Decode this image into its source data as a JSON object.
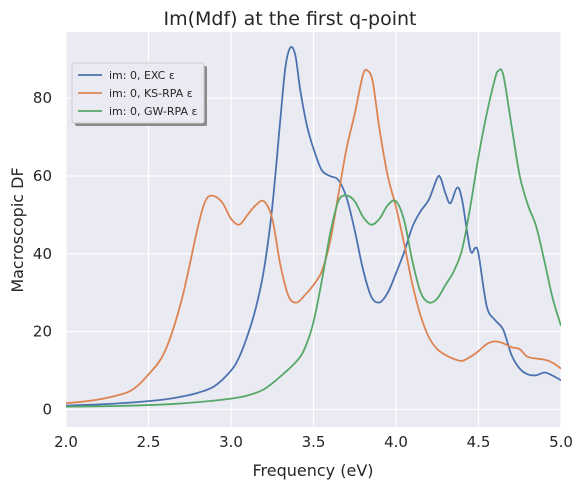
{
  "chart_data": {
    "type": "line",
    "title": "Im(Mdf) at the first q-point",
    "xlabel": "Frequency (eV)",
    "ylabel": "Macroscopic DF",
    "xlim": [
      2.0,
      5.0
    ],
    "ylim": [
      -4.5,
      97
    ],
    "x_ticks": [
      2.0,
      2.5,
      3.0,
      3.5,
      4.0,
      4.5,
      5.0
    ],
    "x_tick_labels": [
      "2.0",
      "2.5",
      "3.0",
      "3.5",
      "4.0",
      "4.5",
      "5.0"
    ],
    "y_ticks": [
      0,
      20,
      40,
      60,
      80
    ],
    "y_tick_labels": [
      "0",
      "20",
      "40",
      "60",
      "80"
    ],
    "grid": true,
    "legend_position": "upper-left",
    "background": "#eaeaf2",
    "series": [
      {
        "name": "im: 0, EXC ε",
        "color": "#4c72b0",
        "points": [
          [
            2.0,
            1.0
          ],
          [
            2.2,
            1.3
          ],
          [
            2.4,
            1.8
          ],
          [
            2.6,
            2.6
          ],
          [
            2.7,
            3.3
          ],
          [
            2.8,
            4.3
          ],
          [
            2.9,
            6.0
          ],
          [
            3.0,
            10.0
          ],
          [
            3.05,
            13.5
          ],
          [
            3.1,
            19.0
          ],
          [
            3.15,
            26.0
          ],
          [
            3.2,
            36.0
          ],
          [
            3.25,
            52.0
          ],
          [
            3.3,
            75.0
          ],
          [
            3.33,
            88.0
          ],
          [
            3.36,
            93.0
          ],
          [
            3.39,
            91.0
          ],
          [
            3.42,
            82.0
          ],
          [
            3.46,
            73.0
          ],
          [
            3.5,
            67.0
          ],
          [
            3.55,
            61.5
          ],
          [
            3.6,
            60.0
          ],
          [
            3.65,
            59.0
          ],
          [
            3.7,
            54.5
          ],
          [
            3.75,
            46.0
          ],
          [
            3.8,
            36.0
          ],
          [
            3.85,
            29.0
          ],
          [
            3.9,
            27.5
          ],
          [
            3.95,
            30.0
          ],
          [
            4.0,
            35.0
          ],
          [
            4.05,
            40.5
          ],
          [
            4.1,
            47.0
          ],
          [
            4.15,
            51.0
          ],
          [
            4.2,
            54.0
          ],
          [
            4.25,
            59.5
          ],
          [
            4.27,
            59.5
          ],
          [
            4.3,
            55.5
          ],
          [
            4.33,
            53.0
          ],
          [
            4.37,
            57.0
          ],
          [
            4.4,
            54.0
          ],
          [
            4.45,
            41.0
          ],
          [
            4.48,
            41.5
          ],
          [
            4.5,
            40.0
          ],
          [
            4.55,
            26.5
          ],
          [
            4.6,
            23.0
          ],
          [
            4.65,
            20.5
          ],
          [
            4.7,
            14.0
          ],
          [
            4.75,
            10.5
          ],
          [
            4.8,
            9.0
          ],
          [
            4.85,
            8.8
          ],
          [
            4.9,
            9.5
          ],
          [
            4.95,
            8.7
          ],
          [
            5.0,
            7.5
          ]
        ]
      },
      {
        "name": "im: 0, KS-RPA ε",
        "color": "#dd8452",
        "points": [
          [
            2.0,
            1.6
          ],
          [
            2.1,
            2.0
          ],
          [
            2.2,
            2.6
          ],
          [
            2.3,
            3.5
          ],
          [
            2.4,
            5.0
          ],
          [
            2.5,
            9.0
          ],
          [
            2.6,
            15.0
          ],
          [
            2.7,
            28.0
          ],
          [
            2.8,
            47.0
          ],
          [
            2.85,
            54.0
          ],
          [
            2.9,
            54.8
          ],
          [
            2.95,
            53.0
          ],
          [
            3.0,
            49.0
          ],
          [
            3.05,
            47.5
          ],
          [
            3.1,
            50.0
          ],
          [
            3.15,
            52.5
          ],
          [
            3.2,
            53.5
          ],
          [
            3.25,
            49.0
          ],
          [
            3.3,
            37.0
          ],
          [
            3.35,
            29.0
          ],
          [
            3.4,
            27.5
          ],
          [
            3.45,
            29.5
          ],
          [
            3.5,
            32.0
          ],
          [
            3.55,
            35.5
          ],
          [
            3.6,
            43.0
          ],
          [
            3.65,
            55.0
          ],
          [
            3.7,
            67.0
          ],
          [
            3.75,
            76.0
          ],
          [
            3.8,
            86.0
          ],
          [
            3.83,
            87.0
          ],
          [
            3.86,
            84.0
          ],
          [
            3.9,
            72.0
          ],
          [
            3.95,
            60.0
          ],
          [
            4.0,
            52.0
          ],
          [
            4.05,
            42.5
          ],
          [
            4.1,
            32.0
          ],
          [
            4.15,
            24.0
          ],
          [
            4.2,
            18.5
          ],
          [
            4.25,
            15.5
          ],
          [
            4.3,
            14.0
          ],
          [
            4.35,
            13.0
          ],
          [
            4.4,
            12.5
          ],
          [
            4.45,
            13.5
          ],
          [
            4.5,
            15.0
          ],
          [
            4.55,
            16.8
          ],
          [
            4.6,
            17.5
          ],
          [
            4.65,
            17.0
          ],
          [
            4.7,
            16.0
          ],
          [
            4.75,
            15.5
          ],
          [
            4.8,
            13.5
          ],
          [
            4.9,
            12.8
          ],
          [
            4.95,
            12.0
          ],
          [
            5.0,
            10.5
          ]
        ]
      },
      {
        "name": "im: 0, GW-RPA ε",
        "color": "#55a868",
        "points": [
          [
            2.0,
            0.7
          ],
          [
            2.3,
            0.9
          ],
          [
            2.6,
            1.3
          ],
          [
            2.8,
            1.9
          ],
          [
            3.0,
            2.8
          ],
          [
            3.1,
            3.6
          ],
          [
            3.2,
            5.2
          ],
          [
            3.3,
            8.5
          ],
          [
            3.4,
            12.5
          ],
          [
            3.45,
            16.0
          ],
          [
            3.5,
            22.5
          ],
          [
            3.55,
            33.0
          ],
          [
            3.6,
            45.0
          ],
          [
            3.65,
            53.5
          ],
          [
            3.7,
            55.0
          ],
          [
            3.75,
            53.5
          ],
          [
            3.8,
            49.5
          ],
          [
            3.85,
            47.5
          ],
          [
            3.9,
            49.0
          ],
          [
            3.95,
            52.5
          ],
          [
            4.0,
            53.5
          ],
          [
            4.05,
            48.5
          ],
          [
            4.1,
            38.0
          ],
          [
            4.15,
            30.0
          ],
          [
            4.2,
            27.5
          ],
          [
            4.25,
            28.5
          ],
          [
            4.3,
            32.0
          ],
          [
            4.35,
            35.5
          ],
          [
            4.4,
            41.0
          ],
          [
            4.45,
            52.0
          ],
          [
            4.5,
            65.0
          ],
          [
            4.55,
            76.0
          ],
          [
            4.6,
            85.0
          ],
          [
            4.62,
            87.0
          ],
          [
            4.65,
            86.0
          ],
          [
            4.7,
            73.0
          ],
          [
            4.75,
            60.0
          ],
          [
            4.8,
            52.5
          ],
          [
            4.85,
            47.0
          ],
          [
            4.9,
            38.0
          ],
          [
            4.95,
            28.5
          ],
          [
            5.0,
            21.5
          ]
        ]
      }
    ]
  }
}
